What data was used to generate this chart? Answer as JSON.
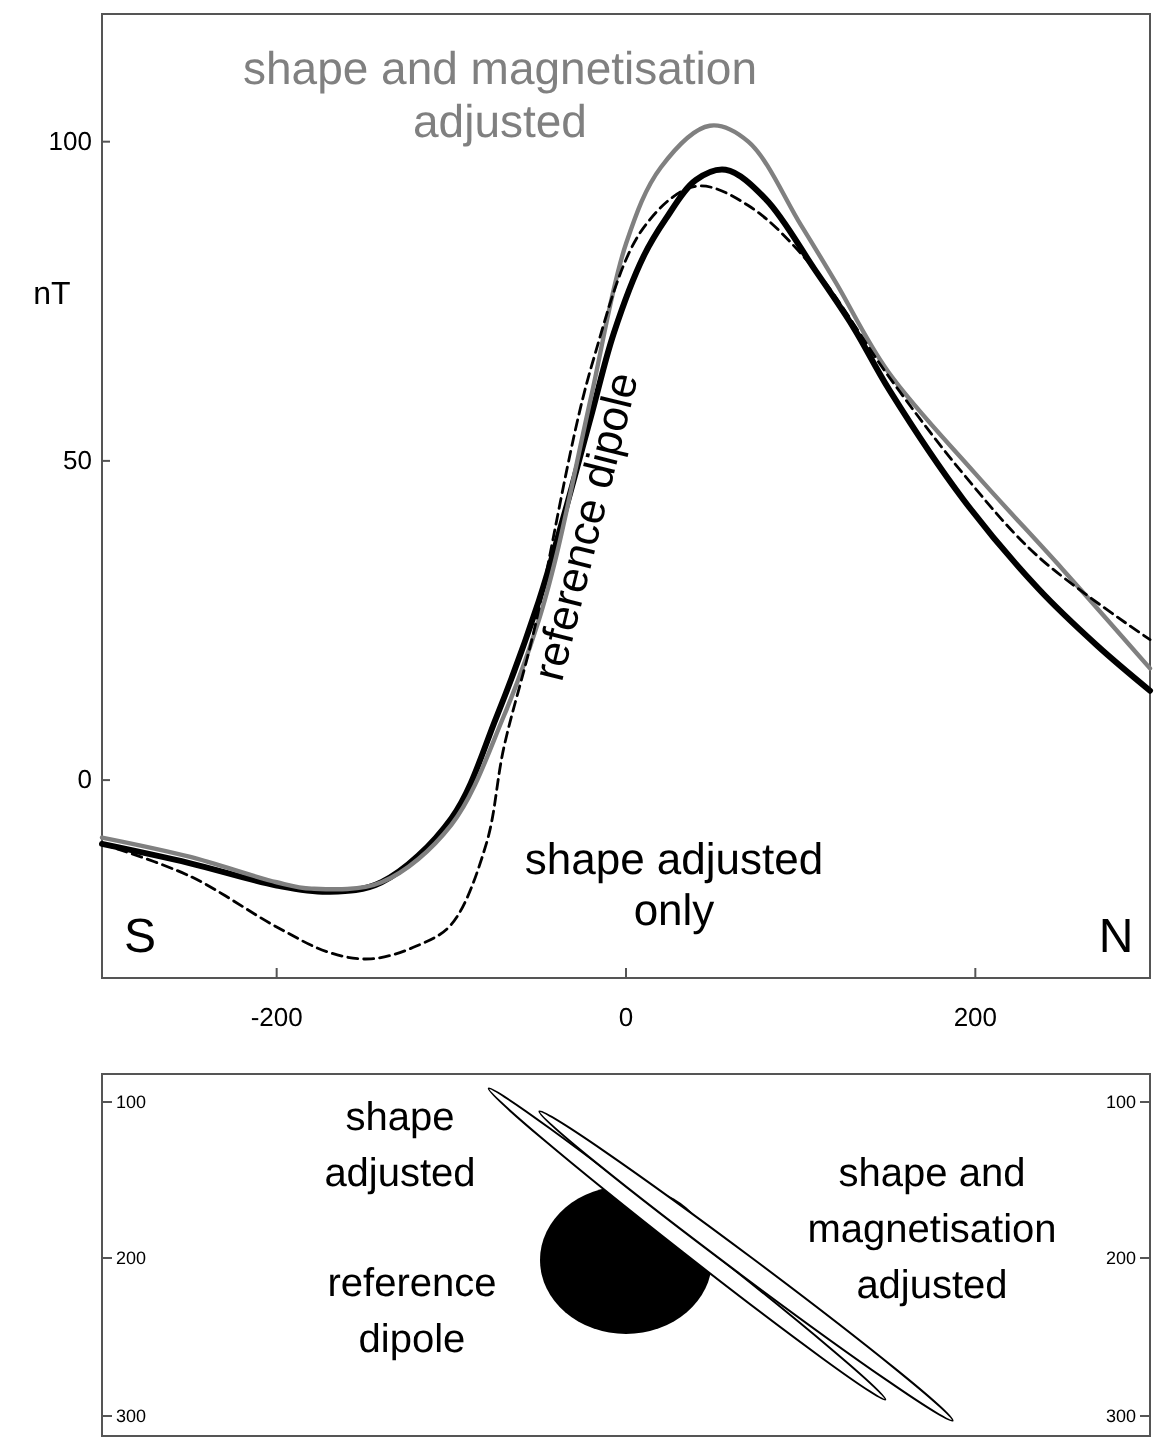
{
  "chart_data": [
    {
      "type": "line",
      "ylabel": "nT",
      "xlim": [
        -300,
        300
      ],
      "xticks": [
        -200,
        0,
        200
      ],
      "ylim": [
        -31,
        120
      ],
      "yticks": [
        0,
        50,
        100
      ],
      "grid": false,
      "series": [
        {
          "color": "#000000",
          "line_style": "solid",
          "x": [
            -300,
            -250,
            -200,
            -170,
            -140,
            -100,
            -74,
            -50,
            -36,
            -20,
            -7,
            10,
            23,
            40,
            57,
            80,
            108,
            130,
            151,
            193,
            236,
            270,
            300
          ],
          "values": [
            -10,
            -13,
            -16.5,
            -17.5,
            -16,
            -6,
            10,
            28,
            41,
            57,
            70,
            82,
            88,
            94,
            95.6,
            91,
            80,
            71,
            61,
            44,
            30,
            21,
            14
          ]
        },
        {
          "color": "#808080",
          "line_style": "solid",
          "x": [
            -300,
            -250,
            -200,
            -180,
            -140,
            -100,
            -70,
            -50,
            -40,
            -20,
            0,
            20,
            48,
            70,
            100,
            120,
            150,
            200,
            250,
            300
          ],
          "values": [
            -9,
            -12,
            -16,
            -17,
            -16,
            -7,
            10,
            25,
            35,
            60,
            84,
            96,
            102.5,
            100,
            87,
            78,
            64,
            48,
            33,
            17.5
          ]
        },
        {
          "color": "#000000",
          "line_style": "dashed",
          "x": [
            -300,
            -250,
            -200,
            -170,
            -146,
            -120,
            -100,
            -80,
            -70,
            -53,
            -20,
            10,
            40,
            70,
            108,
            151,
            193,
            236,
            300
          ],
          "values": [
            -10,
            -15,
            -23,
            -27,
            -28,
            -26,
            -22.6,
            -10,
            5,
            23,
            64.6,
            86.5,
            93,
            90,
            80,
            63,
            48,
            35,
            22
          ]
        }
      ],
      "annotations": [
        "shape and magnetisation\nadjusted",
        "reference dipole",
        "shape adjusted\nonly",
        "S",
        "N"
      ]
    },
    {
      "type": "other",
      "annotations": [
        "shape\nadjusted",
        "reference\ndipole",
        "shape and\nmagnetisation\nadjusted",
        "100",
        "200",
        "300",
        "100",
        "200",
        "300"
      ]
    }
  ]
}
